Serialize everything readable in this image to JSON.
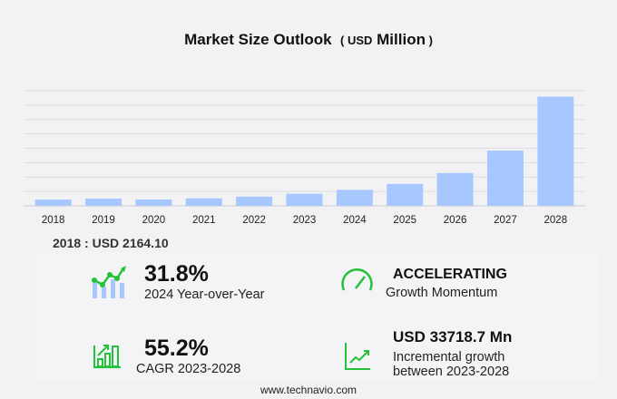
{
  "title": {
    "main": "Market Size Outlook",
    "unit_open": "( ",
    "unit_small": "USD",
    "unit_big": " Million",
    "unit_close": " )"
  },
  "chart_data": {
    "type": "bar",
    "categories": [
      "2018",
      "2019",
      "2020",
      "2021",
      "2022",
      "2023",
      "2024",
      "2025",
      "2026",
      "2027",
      "2028"
    ],
    "values": [
      2164.1,
      2500,
      2200,
      2600,
      3200,
      4215,
      5555,
      7600,
      11400,
      19200,
      37934
    ],
    "ylim": [
      0,
      40000
    ],
    "grid": true,
    "bar_color": "#a6c8ff"
  },
  "base_year": "2018 : USD  2164.10",
  "stats": {
    "yoy": {
      "value": "31.8%",
      "label": "2024 Year-over-Year",
      "icon": "growth-chart-icon"
    },
    "momentum": {
      "value": "ACCELERATING",
      "label": "Growth Momentum",
      "icon": "speedometer-icon"
    },
    "cagr": {
      "value": "55.2%",
      "label": "CAGR 2023-2028",
      "icon": "bar-chart-icon"
    },
    "incremental": {
      "value": "USD 33718.7 Mn",
      "label1": "Incremental growth",
      "label2": "between 2023-2028",
      "icon": "trend-line-icon"
    }
  },
  "footer": "www.technavio.com",
  "accent": "#22c33a"
}
